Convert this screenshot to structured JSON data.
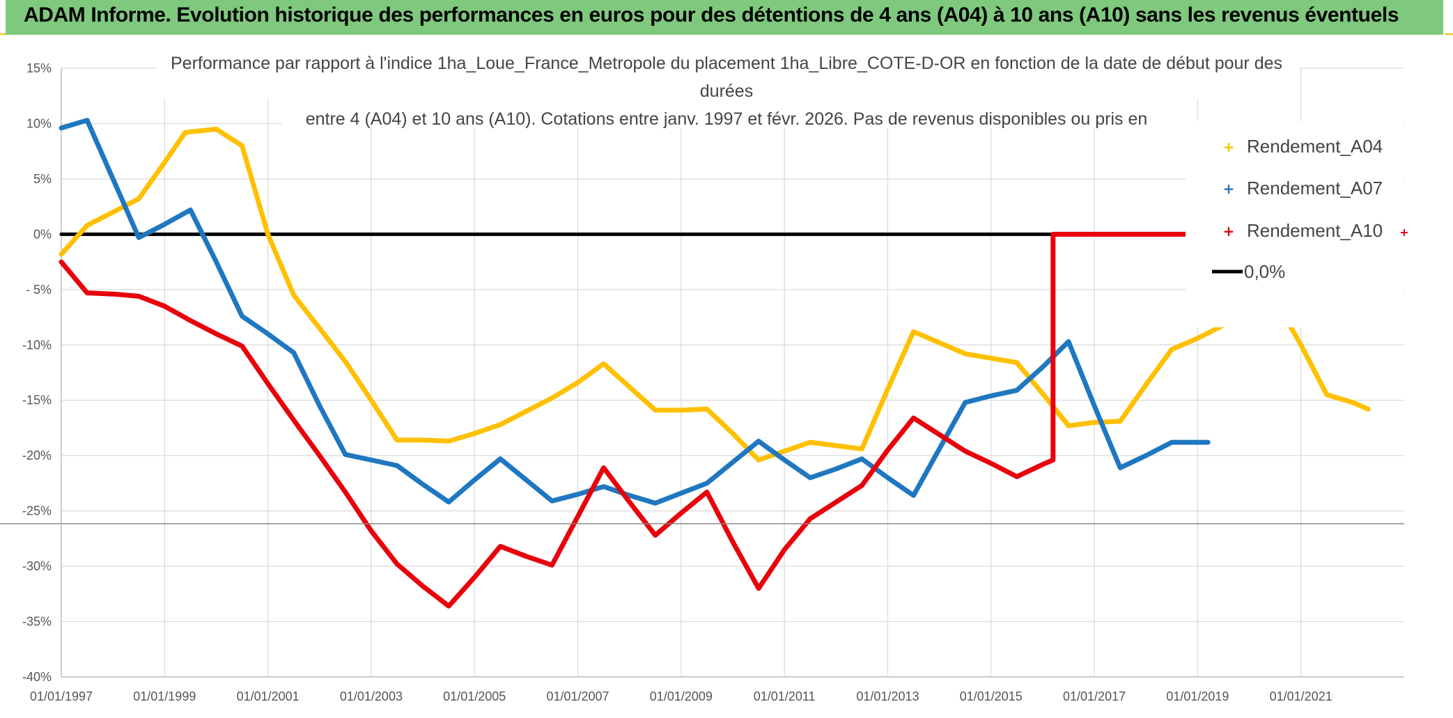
{
  "banner": {
    "title": "ADAM Informe. Evolution historique des performances en euros pour des détentions de 4 ans (A04) à 10 ans (A10) sans les revenus éventuels"
  },
  "chart_data": {
    "type": "line",
    "subtitle_lines": [
      "Performance par rapport à l'indice 1ha_Loue_France_Metropole  du placement 1ha_Libre_COTE-D-OR en fonction de la date de début pour des",
      "durées",
      "entre 4 (A04) et 10 ans (A10). Cotations entre janv. 1997 et févr. 2026. Pas de revenus disponibles ou pris en"
    ],
    "xlim": [
      1997.0,
      2023.0
    ],
    "ylim": [
      -40,
      15
    ],
    "y_ticks": [
      15,
      10,
      5,
      0,
      -5,
      -10,
      -15,
      -20,
      -25,
      -30,
      -35,
      -40
    ],
    "y_tick_labels": [
      "15%",
      "10%",
      "5%",
      "0%",
      "- 5%",
      "-10%",
      "-15%",
      "-20%",
      "-25%",
      "-30%",
      "-35%",
      "-40%"
    ],
    "x_ticks": [
      1997,
      1999,
      2001,
      2003,
      2005,
      2007,
      2009,
      2011,
      2013,
      2015,
      2017,
      2019,
      2021
    ],
    "x_tick_labels": [
      "01/01/1997",
      "01/01/1999",
      "01/01/2001",
      "01/01/2003",
      "01/01/2005",
      "01/01/2007",
      "01/01/2009",
      "01/01/2011",
      "01/01/2013",
      "01/01/2015",
      "01/01/2017",
      "01/01/2019",
      "01/01/2021"
    ],
    "grid": true,
    "legend_position": "right",
    "series": [
      {
        "name": "Rendement_A04",
        "color": "#ffc000",
        "points": [
          [
            1997.0,
            -1.8
          ],
          [
            1997.5,
            0.8
          ],
          [
            1998.0,
            2.0
          ],
          [
            1998.5,
            3.2
          ],
          [
            1999.0,
            6.5
          ],
          [
            1999.4,
            9.2
          ],
          [
            2000.0,
            9.5
          ],
          [
            2000.5,
            8.0
          ],
          [
            2001.0,
            0.0
          ],
          [
            2001.5,
            -5.5
          ],
          [
            2002.0,
            -8.5
          ],
          [
            2002.5,
            -11.5
          ],
          [
            2003.0,
            -15.0
          ],
          [
            2003.5,
            -18.6
          ],
          [
            2004.0,
            -18.6
          ],
          [
            2004.5,
            -18.7
          ],
          [
            2005.0,
            -18.0
          ],
          [
            2005.5,
            -17.2
          ],
          [
            2006.0,
            -16.0
          ],
          [
            2006.5,
            -14.8
          ],
          [
            2007.0,
            -13.4
          ],
          [
            2007.5,
            -11.7
          ],
          [
            2008.0,
            -13.8
          ],
          [
            2008.5,
            -15.9
          ],
          [
            2009.0,
            -15.9
          ],
          [
            2009.5,
            -15.8
          ],
          [
            2010.0,
            -18.0
          ],
          [
            2010.5,
            -20.4
          ],
          [
            2011.0,
            -19.6
          ],
          [
            2011.5,
            -18.8
          ],
          [
            2012.0,
            -19.1
          ],
          [
            2012.5,
            -19.4
          ],
          [
            2013.0,
            -14.0
          ],
          [
            2013.5,
            -8.8
          ],
          [
            2014.0,
            -9.8
          ],
          [
            2014.5,
            -10.8
          ],
          [
            2015.0,
            -11.2
          ],
          [
            2015.5,
            -11.6
          ],
          [
            2016.0,
            -14.4
          ],
          [
            2016.5,
            -17.3
          ],
          [
            2017.0,
            -17.0
          ],
          [
            2017.5,
            -16.9
          ],
          [
            2018.0,
            -13.6
          ],
          [
            2018.5,
            -10.4
          ],
          [
            2019.0,
            -9.4
          ],
          [
            2019.5,
            -8.2
          ],
          [
            2020.0,
            -7.0
          ],
          [
            2020.5,
            -5.9
          ],
          [
            2021.0,
            -10.0
          ],
          [
            2021.5,
            -14.5
          ],
          [
            2022.0,
            -15.2
          ],
          [
            2022.3,
            -15.8
          ]
        ]
      },
      {
        "name": "Rendement_A07",
        "color": "#1f77c0",
        "points": [
          [
            1997.0,
            9.6
          ],
          [
            1997.5,
            10.3
          ],
          [
            1998.0,
            5.0
          ],
          [
            1998.5,
            -0.3
          ],
          [
            1999.0,
            0.9
          ],
          [
            1999.5,
            2.2
          ],
          [
            2000.0,
            -2.5
          ],
          [
            2000.5,
            -7.4
          ],
          [
            2001.0,
            -9.0
          ],
          [
            2001.5,
            -10.7
          ],
          [
            2002.0,
            -15.5
          ],
          [
            2002.5,
            -19.9
          ],
          [
            2003.0,
            -20.4
          ],
          [
            2003.5,
            -20.9
          ],
          [
            2004.0,
            -22.6
          ],
          [
            2004.5,
            -24.2
          ],
          [
            2005.0,
            -22.2
          ],
          [
            2005.5,
            -20.3
          ],
          [
            2006.0,
            -22.2
          ],
          [
            2006.5,
            -24.1
          ],
          [
            2007.0,
            -23.5
          ],
          [
            2007.5,
            -22.8
          ],
          [
            2008.0,
            -23.6
          ],
          [
            2008.5,
            -24.3
          ],
          [
            2009.0,
            -23.4
          ],
          [
            2009.5,
            -22.5
          ],
          [
            2010.0,
            -20.6
          ],
          [
            2010.5,
            -18.7
          ],
          [
            2011.0,
            -20.4
          ],
          [
            2011.5,
            -22.0
          ],
          [
            2012.0,
            -21.2
          ],
          [
            2012.5,
            -20.3
          ],
          [
            2013.0,
            -22.0
          ],
          [
            2013.5,
            -23.6
          ],
          [
            2014.0,
            -19.4
          ],
          [
            2014.5,
            -15.2
          ],
          [
            2015.0,
            -14.6
          ],
          [
            2015.5,
            -14.1
          ],
          [
            2016.0,
            -12.0
          ],
          [
            2016.5,
            -9.7
          ],
          [
            2017.0,
            -15.5
          ],
          [
            2017.5,
            -21.1
          ],
          [
            2018.0,
            -20.0
          ],
          [
            2018.5,
            -18.8
          ],
          [
            2019.0,
            -18.8
          ],
          [
            2019.2,
            -18.8
          ]
        ]
      },
      {
        "name": "Rendement_A10",
        "color": "#e8000b",
        "points": [
          [
            1997.0,
            -2.5
          ],
          [
            1997.5,
            -5.3
          ],
          [
            1998.0,
            -5.4
          ],
          [
            1998.5,
            -5.6
          ],
          [
            1999.0,
            -6.5
          ],
          [
            1999.5,
            -7.8
          ],
          [
            2000.0,
            -9.0
          ],
          [
            2000.5,
            -10.1
          ],
          [
            2001.0,
            -13.5
          ],
          [
            2001.5,
            -16.8
          ],
          [
            2002.0,
            -20.0
          ],
          [
            2002.5,
            -23.3
          ],
          [
            2003.0,
            -26.8
          ],
          [
            2003.5,
            -29.8
          ],
          [
            2004.0,
            -31.8
          ],
          [
            2004.5,
            -33.6
          ],
          [
            2005.0,
            -31.0
          ],
          [
            2005.5,
            -28.2
          ],
          [
            2006.0,
            -29.1
          ],
          [
            2006.5,
            -29.9
          ],
          [
            2007.0,
            -25.5
          ],
          [
            2007.5,
            -21.1
          ],
          [
            2008.0,
            -24.2
          ],
          [
            2008.5,
            -27.2
          ],
          [
            2009.0,
            -25.2
          ],
          [
            2009.5,
            -23.3
          ],
          [
            2010.0,
            -27.8
          ],
          [
            2010.5,
            -32.0
          ],
          [
            2011.0,
            -28.5
          ],
          [
            2011.5,
            -25.7
          ],
          [
            2012.0,
            -24.2
          ],
          [
            2012.5,
            -22.7
          ],
          [
            2013.0,
            -19.5
          ],
          [
            2013.5,
            -16.6
          ],
          [
            2014.0,
            -18.1
          ],
          [
            2014.5,
            -19.6
          ],
          [
            2015.0,
            -20.7
          ],
          [
            2015.5,
            -21.9
          ],
          [
            2016.0,
            -20.8
          ],
          [
            2016.2,
            -20.4
          ],
          [
            2016.2,
            0.0
          ],
          [
            2019.0,
            0.0
          ]
        ]
      },
      {
        "name": "0,0%",
        "color": "#000000",
        "points": [
          [
            1997.0,
            0.0
          ],
          [
            2016.2,
            0.0
          ]
        ]
      }
    ]
  },
  "legend": {
    "items": [
      {
        "label": "Rendement_A04",
        "color": "#ffc000",
        "marker": "plus"
      },
      {
        "label": "Rendement_A07",
        "color": "#1f77c0",
        "marker": "plus"
      },
      {
        "label": "Rendement_A10",
        "color": "#e8000b",
        "marker": "plus"
      },
      {
        "label": "0,0%",
        "color": "#000000",
        "marker": "line"
      }
    ]
  }
}
